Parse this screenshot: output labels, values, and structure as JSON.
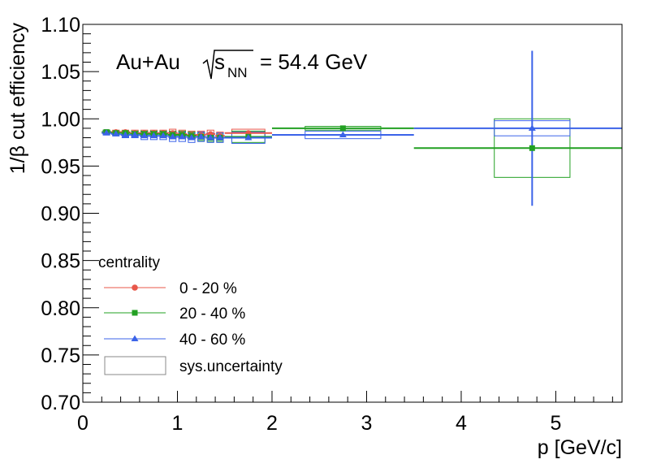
{
  "chart_data": {
    "type": "scatter",
    "title": "",
    "annotation": {
      "system": "Au+Au",
      "s_symbol": "s",
      "s_subscript": "NN",
      "energy_text": "= 54.4 GeV"
    },
    "xlabel": "p [GeV/c]",
    "ylabel": "1/β cut efficiency",
    "xlim": [
      0,
      5.7
    ],
    "ylim": [
      0.7,
      1.1
    ],
    "x_ticks": [
      0,
      1,
      2,
      3,
      4,
      5
    ],
    "x_tick_labels": [
      "0",
      "1",
      "2",
      "3",
      "4",
      "5"
    ],
    "y_ticks": [
      0.7,
      0.75,
      0.8,
      0.85,
      0.9,
      0.95,
      1.0,
      1.05,
      1.1
    ],
    "y_tick_labels": [
      "0.70",
      "0.75",
      "0.80",
      "0.85",
      "0.90",
      "0.95",
      "1.00",
      "1.05",
      "1.10"
    ],
    "grid": false,
    "legend": {
      "placement": "bottom-left",
      "header": "centrality",
      "sys_label": "sys.uncertainty"
    },
    "colors": {
      "0-20": "#e8574a",
      "20-40": "#22a022",
      "40-60": "#3b63e8",
      "sys_box_0-20": "#e8574a",
      "sys_box_20-40": "#22a022",
      "sys_box_40-60": "#3b63e8"
    },
    "series": [
      {
        "name": "0 - 20 %",
        "marker": "circle",
        "points": [
          {
            "x": 0.25,
            "y": 0.986,
            "xerr": 0.05,
            "sys": 0.002
          },
          {
            "x": 0.35,
            "y": 0.986,
            "xerr": 0.05,
            "sys": 0.002
          },
          {
            "x": 0.45,
            "y": 0.986,
            "xerr": 0.05,
            "sys": 0.002
          },
          {
            "x": 0.55,
            "y": 0.985,
            "xerr": 0.05,
            "sys": 0.003
          },
          {
            "x": 0.65,
            "y": 0.985,
            "xerr": 0.05,
            "sys": 0.003
          },
          {
            "x": 0.75,
            "y": 0.985,
            "xerr": 0.05,
            "sys": 0.003
          },
          {
            "x": 0.85,
            "y": 0.985,
            "xerr": 0.05,
            "sys": 0.003
          },
          {
            "x": 0.95,
            "y": 0.985,
            "xerr": 0.05,
            "sys": 0.004
          },
          {
            "x": 1.05,
            "y": 0.984,
            "xerr": 0.05,
            "sys": 0.004
          },
          {
            "x": 1.15,
            "y": 0.983,
            "xerr": 0.05,
            "sys": 0.004
          },
          {
            "x": 1.25,
            "y": 0.983,
            "xerr": 0.05,
            "sys": 0.004
          },
          {
            "x": 1.35,
            "y": 0.984,
            "xerr": 0.05,
            "sys": 0.004
          },
          {
            "x": 1.45,
            "y": 0.982,
            "xerr": 0.05,
            "sys": 0.004
          },
          {
            "x": 1.75,
            "y": 0.985,
            "xerr": 0.25,
            "sys": 0.004
          }
        ]
      },
      {
        "name": "20 - 40 %",
        "marker": "square",
        "points": [
          {
            "x": 0.25,
            "y": 0.986,
            "xerr": 0.05,
            "sys": 0.002
          },
          {
            "x": 0.35,
            "y": 0.985,
            "xerr": 0.05,
            "sys": 0.002
          },
          {
            "x": 0.45,
            "y": 0.985,
            "xerr": 0.05,
            "sys": 0.002
          },
          {
            "x": 0.55,
            "y": 0.984,
            "xerr": 0.05,
            "sys": 0.003
          },
          {
            "x": 0.65,
            "y": 0.984,
            "xerr": 0.05,
            "sys": 0.003
          },
          {
            "x": 0.75,
            "y": 0.984,
            "xerr": 0.05,
            "sys": 0.003
          },
          {
            "x": 0.85,
            "y": 0.984,
            "xerr": 0.05,
            "sys": 0.003
          },
          {
            "x": 0.95,
            "y": 0.983,
            "xerr": 0.05,
            "sys": 0.004
          },
          {
            "x": 1.05,
            "y": 0.983,
            "xerr": 0.05,
            "sys": 0.004
          },
          {
            "x": 1.15,
            "y": 0.982,
            "xerr": 0.05,
            "sys": 0.004
          },
          {
            "x": 1.25,
            "y": 0.981,
            "xerr": 0.05,
            "sys": 0.004
          },
          {
            "x": 1.35,
            "y": 0.98,
            "xerr": 0.05,
            "sys": 0.004
          },
          {
            "x": 1.45,
            "y": 0.98,
            "xerr": 0.05,
            "sys": 0.004
          },
          {
            "x": 1.75,
            "y": 0.981,
            "xerr": 0.25,
            "sys": 0.006
          },
          {
            "x": 2.75,
            "y": 0.99,
            "xerr": 0.75,
            "sys": 0.002
          },
          {
            "x": 4.75,
            "y": 0.969,
            "xerr": 1.25,
            "sys": 0.031
          }
        ]
      },
      {
        "name": "40 - 60 %",
        "marker": "triangle",
        "points": [
          {
            "x": 0.25,
            "y": 0.985,
            "xerr": 0.05,
            "sys": 0.002
          },
          {
            "x": 0.35,
            "y": 0.984,
            "xerr": 0.05,
            "sys": 0.002
          },
          {
            "x": 0.45,
            "y": 0.983,
            "xerr": 0.05,
            "sys": 0.003
          },
          {
            "x": 0.55,
            "y": 0.983,
            "xerr": 0.05,
            "sys": 0.003
          },
          {
            "x": 0.65,
            "y": 0.982,
            "xerr": 0.05,
            "sys": 0.004
          },
          {
            "x": 0.75,
            "y": 0.982,
            "xerr": 0.05,
            "sys": 0.004
          },
          {
            "x": 0.85,
            "y": 0.982,
            "xerr": 0.05,
            "sys": 0.004
          },
          {
            "x": 0.95,
            "y": 0.981,
            "xerr": 0.05,
            "sys": 0.005
          },
          {
            "x": 1.05,
            "y": 0.981,
            "xerr": 0.05,
            "sys": 0.005
          },
          {
            "x": 1.15,
            "y": 0.98,
            "xerr": 0.05,
            "sys": 0.005
          },
          {
            "x": 1.25,
            "y": 0.981,
            "xerr": 0.05,
            "sys": 0.005
          },
          {
            "x": 1.35,
            "y": 0.98,
            "xerr": 0.05,
            "sys": 0.005
          },
          {
            "x": 1.45,
            "y": 0.98,
            "xerr": 0.05,
            "sys": 0.005
          },
          {
            "x": 1.75,
            "y": 0.98,
            "xerr": 0.25,
            "sys": 0.006
          },
          {
            "x": 2.75,
            "y": 0.983,
            "xerr": 0.75,
            "sys": 0.004
          },
          {
            "x": 4.75,
            "y": 0.99,
            "xerr": 1.25,
            "sys": 0.008,
            "yerr": 0.082
          }
        ]
      }
    ]
  }
}
